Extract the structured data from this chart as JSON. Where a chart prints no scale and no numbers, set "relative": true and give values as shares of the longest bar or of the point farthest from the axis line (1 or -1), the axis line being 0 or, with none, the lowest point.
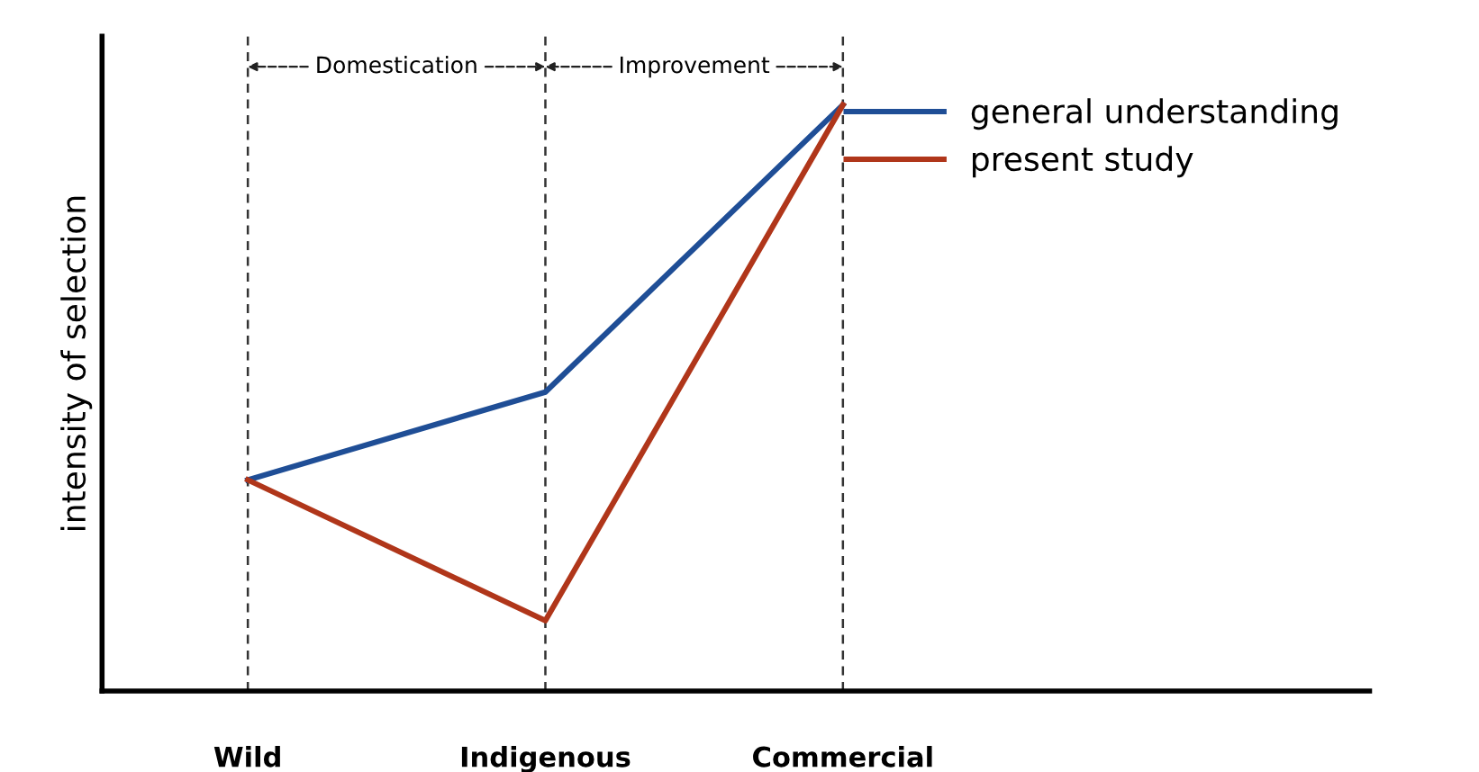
{
  "chart_data": {
    "type": "line",
    "ylabel": "intensity of selection",
    "relative": true,
    "categories": [
      "Wild",
      "Indigenous",
      "Commercial"
    ],
    "series": [
      {
        "name": "general understanding",
        "color": "#1f4e96",
        "values": [
          0.36,
          0.51,
          1
        ]
      },
      {
        "name": "present study",
        "color": "#b0361a",
        "values": [
          0.36,
          0.12,
          1
        ]
      }
    ],
    "annotations": [
      "Domestication",
      "Improvement"
    ],
    "legend": "top right",
    "grid": "x",
    "marker": "none",
    "line_style": "solid"
  }
}
